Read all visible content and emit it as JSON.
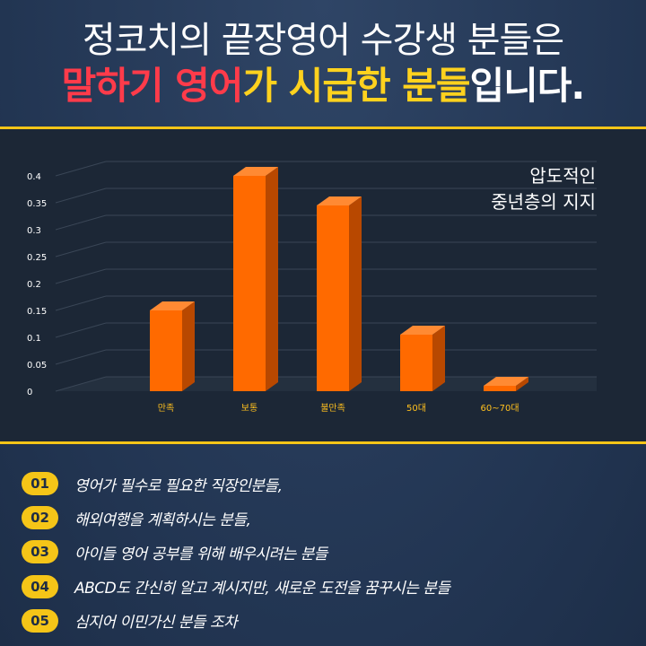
{
  "header": {
    "line1": "정코치의 끝장영어 수강생 분들은",
    "line2_part1": "말하기 영어",
    "line2_part2": "가 시급한 분들",
    "line2_part3": "입니다."
  },
  "annotation": [
    "압도적인",
    "중년층의 지지"
  ],
  "colors": {
    "bar": "#ff6a00",
    "accent": "#f5c518",
    "highlight_red": "#ff3b4a"
  },
  "chart_data": {
    "type": "bar",
    "categories": [
      "만족",
      "보통",
      "불만족",
      "50대",
      "60~70대"
    ],
    "values": [
      0.15,
      0.4,
      0.345,
      0.105,
      0.01
    ],
    "ylim": [
      0,
      0.4
    ],
    "yticks": [
      "0",
      "0.05",
      "0.1",
      "0.15",
      "0.2",
      "0.25",
      "0.3",
      "0.35",
      "0.4"
    ],
    "grid": true,
    "title": "",
    "xlabel": "",
    "ylabel": ""
  },
  "list": [
    {
      "num": "01",
      "text": "영어가 필수로 필요한 직장인분들,"
    },
    {
      "num": "02",
      "text": "해외여행을 계획하시는 분들,"
    },
    {
      "num": "03",
      "text": "아이들 영어 공부를 위해 배우시려는 분들"
    },
    {
      "num": "04",
      "text": "ABCD도 간신히 알고 계시지만, 새로운 도전을 꿈꾸시는 분들"
    },
    {
      "num": "05",
      "text": "심지어 이민가신 분들 조차"
    }
  ]
}
